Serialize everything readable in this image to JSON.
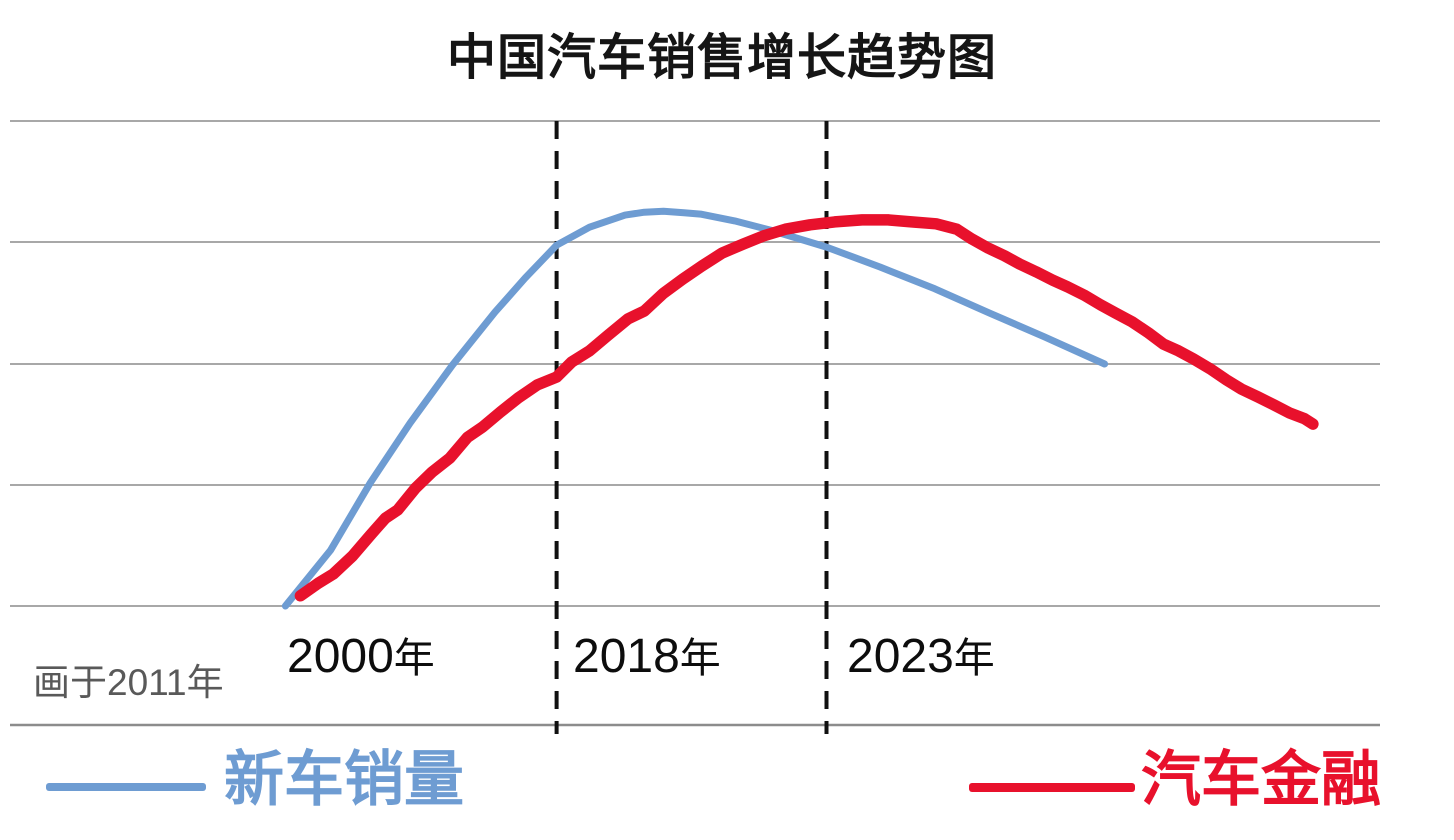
{
  "chart": {
    "title": "中国汽车销售增长趋势图",
    "note": "画于2011年",
    "x_labels": [
      {
        "num": "2000",
        "suffix": "年"
      },
      {
        "num": "2018",
        "suffix": "年"
      },
      {
        "num": "2023",
        "suffix": "年"
      }
    ],
    "legend": [
      {
        "name": "新车销量",
        "color": "#6E9CD2"
      },
      {
        "name": "汽车金融",
        "color": "#E8112C"
      }
    ],
    "colors": {
      "new_car_sales_blue": "#6E9CD2",
      "auto_finance_red": "#E8112C",
      "gridline_gray": "#A8A8A8",
      "note_gray": "#595959",
      "dashed_line_black": "#111111"
    }
  },
  "chart_data": {
    "type": "line",
    "title": "中国汽车销售增长趋势图",
    "xlabel": "",
    "ylabel": "",
    "annotation": "画于2011年",
    "grid": "5 horizontal gridlines, no numeric y-axis; values below are a relative index 0-100 (25 per gridline interval)",
    "legend_position": "bottom",
    "x_axis": {
      "unit": "percent of plot width (schematic timeline, not to scale)",
      "marks": [
        {
          "label": "2000年",
          "x_pct": 21.0,
          "dashed_line": false
        },
        {
          "label": "2018年",
          "x_pct": 39.9,
          "dashed_line": true
        },
        {
          "label": "2023年",
          "x_pct": 59.6,
          "dashed_line": true
        }
      ]
    },
    "y_axis": {
      "visible": false,
      "range": [
        0,
        100
      ],
      "gridline_step": 25
    },
    "dashed_vlines_x_pct": [
      39.9,
      59.6
    ],
    "series": [
      {
        "name": "新车销量",
        "color": "#6E9CD2",
        "style": "smooth thin curve",
        "points": [
          [
            20.1,
            0
          ],
          [
            23.4,
            11.5
          ],
          [
            26.3,
            25.4
          ],
          [
            29.2,
            37.7
          ],
          [
            32.3,
            49.7
          ],
          [
            35.4,
            60.6
          ],
          [
            37.6,
            67.6
          ],
          [
            39.9,
            74.4
          ],
          [
            42.3,
            78.1
          ],
          [
            44.9,
            80.6
          ],
          [
            46.3,
            81.2
          ],
          [
            47.7,
            81.4
          ],
          [
            49.2,
            81.1
          ],
          [
            50.4,
            80.8
          ],
          [
            52.9,
            79.4
          ],
          [
            55.5,
            77.5
          ],
          [
            59.6,
            74.0
          ],
          [
            63.5,
            69.9
          ],
          [
            67.5,
            65.4
          ],
          [
            71.5,
            60.4
          ],
          [
            75.5,
            55.5
          ],
          [
            79.9,
            49.9
          ]
        ]
      },
      {
        "name": "汽车金融",
        "color": "#E8112C",
        "style": "thick hand-drawn wavy curve",
        "points": [
          [
            21.2,
            2.1
          ],
          [
            22.5,
            4.7
          ],
          [
            23.6,
            6.6
          ],
          [
            25.0,
            10.3
          ],
          [
            26.3,
            14.6
          ],
          [
            27.4,
            18.1
          ],
          [
            28.3,
            19.8
          ],
          [
            29.6,
            24.3
          ],
          [
            30.8,
            27.6
          ],
          [
            32.1,
            30.5
          ],
          [
            33.4,
            34.8
          ],
          [
            34.5,
            36.9
          ],
          [
            35.8,
            40.0
          ],
          [
            37.1,
            42.9
          ],
          [
            38.5,
            45.6
          ],
          [
            39.9,
            47.2
          ],
          [
            41.0,
            50.3
          ],
          [
            42.3,
            52.6
          ],
          [
            43.6,
            55.7
          ],
          [
            45.1,
            59.2
          ],
          [
            46.3,
            60.8
          ],
          [
            47.7,
            64.5
          ],
          [
            49.1,
            67.4
          ],
          [
            50.5,
            70.1
          ],
          [
            52.0,
            72.8
          ],
          [
            53.5,
            74.6
          ],
          [
            55.0,
            76.3
          ],
          [
            56.6,
            77.7
          ],
          [
            58.4,
            78.6
          ],
          [
            60.2,
            79.2
          ],
          [
            62.2,
            79.6
          ],
          [
            64.1,
            79.6
          ],
          [
            65.8,
            79.2
          ],
          [
            67.6,
            78.8
          ],
          [
            69.1,
            77.7
          ],
          [
            70.2,
            75.7
          ],
          [
            71.4,
            73.8
          ],
          [
            72.6,
            72.2
          ],
          [
            73.7,
            70.5
          ],
          [
            74.9,
            68.9
          ],
          [
            76.1,
            67.2
          ],
          [
            77.2,
            65.8
          ],
          [
            78.4,
            64.1
          ],
          [
            79.6,
            62.1
          ],
          [
            80.7,
            60.4
          ],
          [
            81.9,
            58.6
          ],
          [
            83.1,
            56.3
          ],
          [
            84.2,
            54.0
          ],
          [
            85.3,
            52.6
          ],
          [
            86.4,
            50.9
          ],
          [
            87.6,
            48.9
          ],
          [
            88.8,
            46.6
          ],
          [
            89.9,
            44.7
          ],
          [
            91.1,
            43.1
          ],
          [
            92.3,
            41.4
          ],
          [
            93.4,
            39.8
          ],
          [
            94.5,
            38.6
          ],
          [
            95.1,
            37.5
          ]
        ]
      }
    ]
  }
}
